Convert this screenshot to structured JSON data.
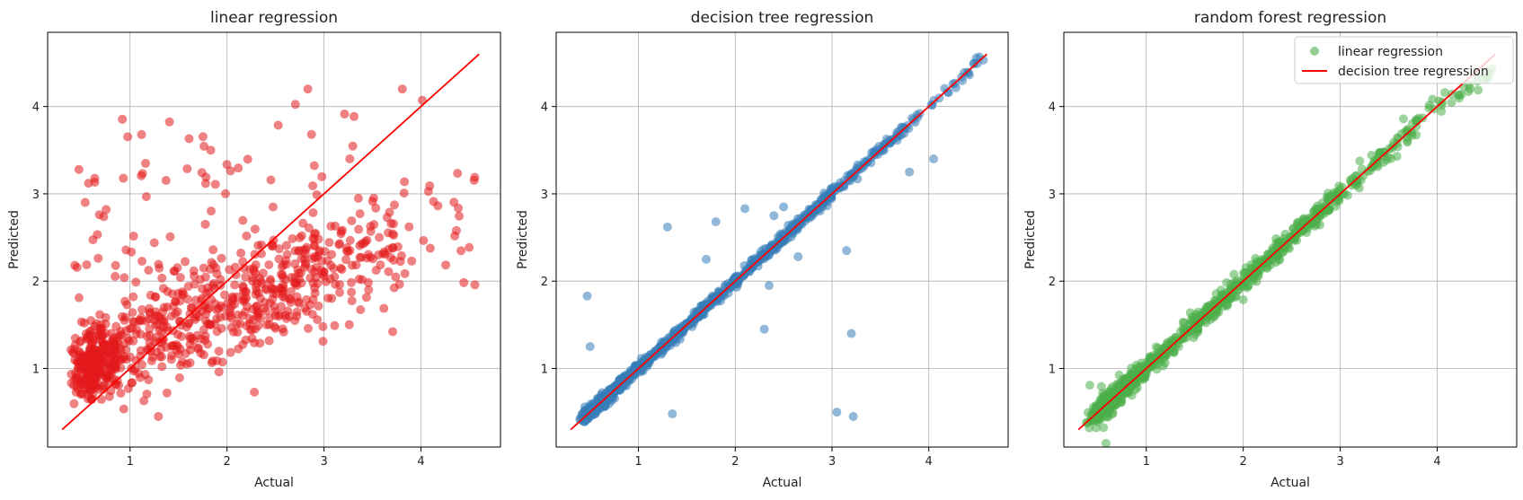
{
  "figure": {
    "background": "#ffffff"
  },
  "chart_data": [
    {
      "type": "scatter",
      "title": "linear regression",
      "xlabel": "Actual",
      "ylabel": "Predicted",
      "xlim": [
        0.15,
        4.82
      ],
      "ylim": [
        0.1,
        4.85
      ],
      "xticks": [
        1,
        2,
        3,
        4
      ],
      "yticks": [
        1,
        2,
        3,
        4
      ],
      "grid": true,
      "point_color": "#e41a1c",
      "point_alpha": 0.55,
      "line": {
        "color": "#ff0000",
        "x": [
          0.3,
          4.6
        ],
        "y": [
          0.3,
          4.6
        ]
      },
      "model": "linear",
      "points": [
        [
          0.9,
          1.05
        ],
        [
          0.95,
          1.08
        ],
        [
          0.96,
          1.12
        ]
      ]
    },
    {
      "type": "scatter",
      "title": "decision tree regression",
      "xlabel": "Actual",
      "ylabel": "Predicted",
      "xlim": [
        0.15,
        4.82
      ],
      "ylim": [
        0.1,
        4.85
      ],
      "xticks": [
        1,
        2,
        3,
        4
      ],
      "yticks": [
        1,
        2,
        3,
        4
      ],
      "grid": true,
      "point_color": "#377eb8",
      "point_alpha": 0.55,
      "line": {
        "color": "#ff0000",
        "x": [
          0.3,
          4.6
        ],
        "y": [
          0.3,
          4.6
        ]
      },
      "model": "tree",
      "outliers": [
        [
          0.47,
          1.83
        ],
        [
          0.5,
          1.25
        ],
        [
          1.3,
          2.62
        ],
        [
          1.35,
          0.48
        ],
        [
          1.8,
          2.68
        ],
        [
          2.1,
          2.83
        ],
        [
          2.3,
          1.45
        ],
        [
          2.35,
          1.95
        ],
        [
          2.4,
          2.75
        ],
        [
          2.65,
          2.28
        ],
        [
          3.05,
          0.5
        ],
        [
          3.15,
          2.35
        ],
        [
          3.2,
          1.4
        ],
        [
          3.22,
          0.45
        ],
        [
          3.8,
          3.25
        ],
        [
          4.05,
          3.4
        ],
        [
          1.7,
          2.25
        ],
        [
          2.5,
          2.85
        ]
      ]
    },
    {
      "type": "scatter",
      "title": "random forest regression",
      "xlabel": "Actual",
      "ylabel": "Predicted",
      "xlim": [
        0.15,
        4.82
      ],
      "ylim": [
        0.1,
        4.85
      ],
      "xticks": [
        1,
        2,
        3,
        4
      ],
      "yticks": [
        1,
        2,
        3,
        4
      ],
      "grid": true,
      "point_color": "#4daf4a",
      "point_alpha": 0.55,
      "line": {
        "color": "#ff0000",
        "x": [
          0.3,
          4.6
        ],
        "y": [
          0.3,
          4.6
        ]
      },
      "model": "forest",
      "legend": {
        "placement": "top-right",
        "entries": [
          {
            "label": "linear regression",
            "kind": "marker",
            "color": "#4daf4a"
          },
          {
            "label": "decision tree regression",
            "kind": "line",
            "color": "#ff0000"
          }
        ]
      }
    }
  ]
}
